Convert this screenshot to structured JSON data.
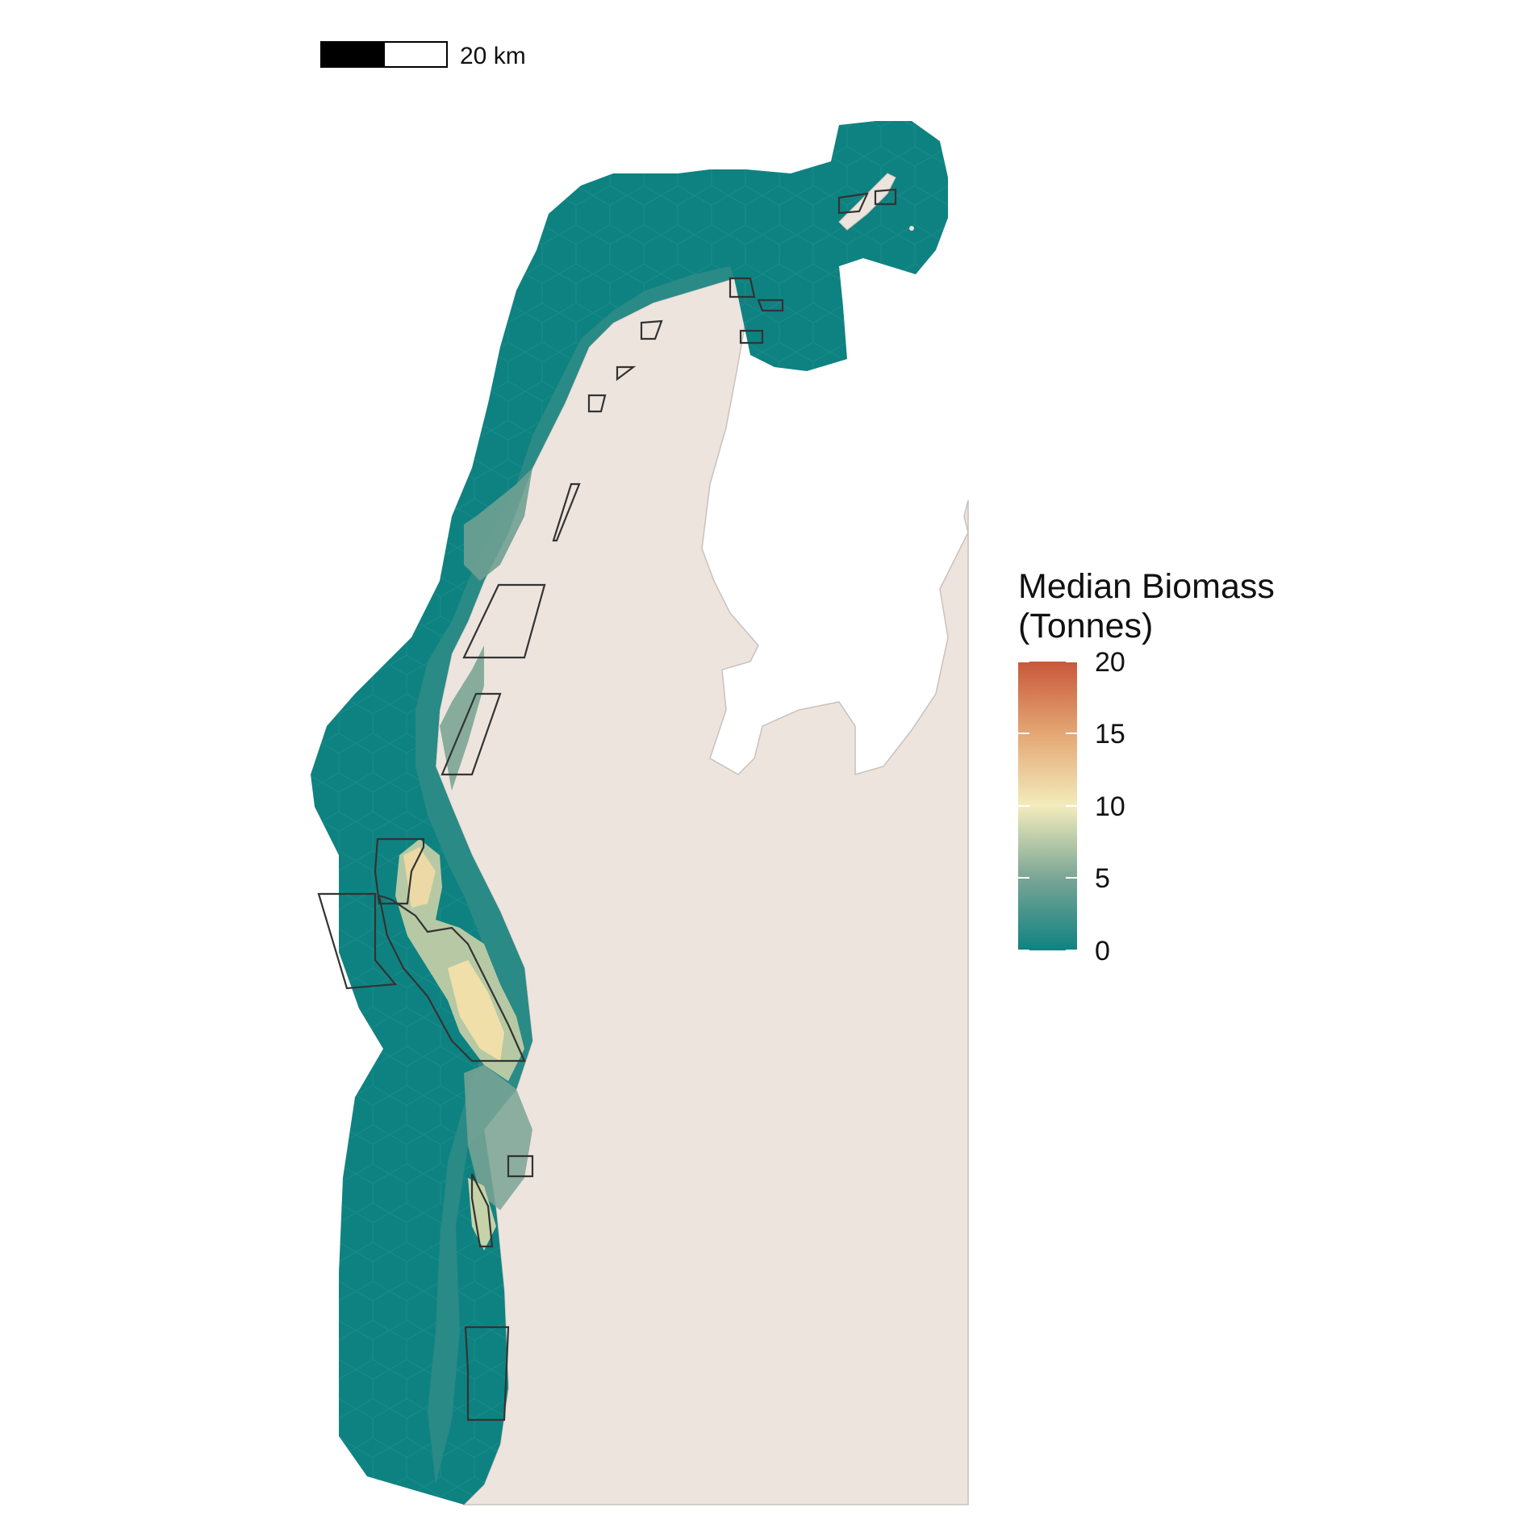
{
  "scale_bar": {
    "label": "20 km"
  },
  "legend": {
    "title_line1": "Median Biomass",
    "title_line2": "(Tonnes)",
    "ticks": [
      "0",
      "5",
      "10",
      "15",
      "20"
    ],
    "range": [
      0,
      20
    ],
    "gradient": [
      "#0e8281",
      "#7aa595",
      "#f3ecbc",
      "#e4a774",
      "#c8583a"
    ]
  },
  "colors": {
    "land": "#ede4de",
    "land_outline": "#c9c1bc",
    "protected_outline": "#333333",
    "hex_low": "#0e8281"
  }
}
